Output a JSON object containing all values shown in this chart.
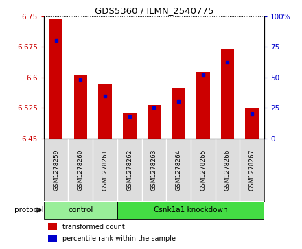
{
  "title": "GDS5360 / ILMN_2540775",
  "samples": [
    "GSM1278259",
    "GSM1278260",
    "GSM1278261",
    "GSM1278262",
    "GSM1278263",
    "GSM1278264",
    "GSM1278265",
    "GSM1278266",
    "GSM1278267"
  ],
  "transformed_counts": [
    6.745,
    6.607,
    6.585,
    6.513,
    6.533,
    6.575,
    6.613,
    6.668,
    6.525
  ],
  "percentile_ranks": [
    80,
    48,
    35,
    18,
    25,
    30,
    52,
    62,
    20
  ],
  "ymin": 6.45,
  "ymax": 6.75,
  "yticks": [
    6.45,
    6.525,
    6.6,
    6.675,
    6.75
  ],
  "right_yticks": [
    0,
    25,
    50,
    75,
    100
  ],
  "bar_color": "#cc0000",
  "blue_color": "#0000cc",
  "protocol_groups": [
    {
      "label": "control",
      "start": 0,
      "end": 3,
      "color": "#99ee99"
    },
    {
      "label": "Csnk1a1 knockdown",
      "start": 3,
      "end": 9,
      "color": "#44dd44"
    }
  ],
  "protocol_label": "protocol",
  "legend_items": [
    {
      "label": "transformed count",
      "color": "#cc0000"
    },
    {
      "label": "percentile rank within the sample",
      "color": "#0000cc"
    }
  ],
  "bar_width": 0.55,
  "bar_bottom": 6.45,
  "bg_color": "#ffffff",
  "xtick_bg_color": "#dddddd",
  "tick_label_color_left": "#cc0000",
  "tick_label_color_right": "#0000cc",
  "grid_color": "#000000"
}
